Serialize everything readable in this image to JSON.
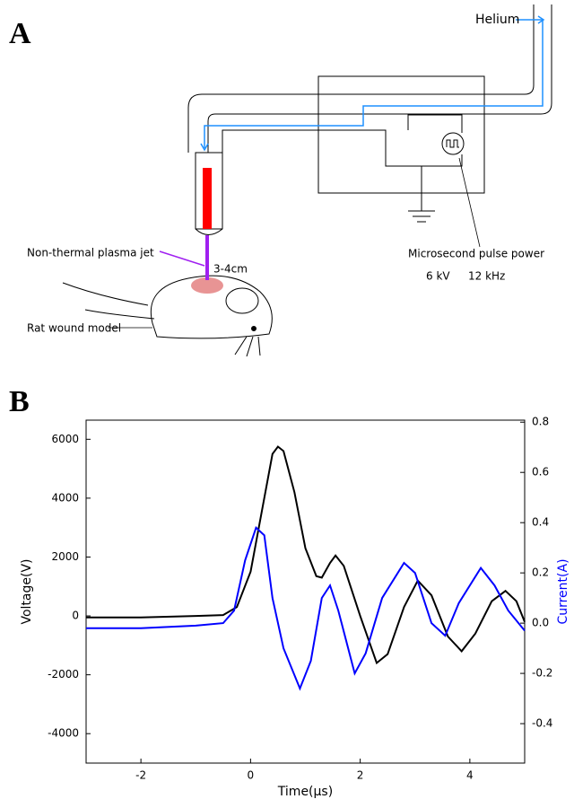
{
  "panel_a": {
    "label": "A",
    "helium": "Helium",
    "plasma_jet": "Non-thermal plasma jet",
    "distance": "3-4cm",
    "power": "Microsecond pulse power",
    "voltage": "6 kV",
    "frequency": "12 kHz",
    "rat": "Rat wound model"
  },
  "panel_b": {
    "label": "B"
  },
  "chart_data": {
    "type": "line",
    "x_label": "Time(μs)",
    "y_label": "Voltage(V)",
    "y2_label": "Current(A)",
    "xlim": [
      -3,
      5
    ],
    "xticks": [
      -2,
      0,
      2,
      4
    ],
    "ylim": [
      -5000,
      6650
    ],
    "yticks": [
      -4000,
      -2000,
      0,
      2000,
      4000,
      6000
    ],
    "y2lim": [
      -0.557,
      0.808
    ],
    "y2ticks": [
      -0.4,
      -0.2,
      {
        "value": 0,
        "label": "0.0"
      },
      0.2,
      0.4,
      0.6,
      0.8
    ],
    "series": [
      {
        "color": "#000000",
        "x": [
          -3,
          -2,
          -1,
          -0.5,
          -0.25,
          0,
          0.2,
          0.4,
          0.5,
          0.6,
          0.8,
          1.0,
          1.2,
          1.3,
          1.45,
          1.55,
          1.7,
          2.0,
          2.3,
          2.5,
          2.8,
          3.05,
          3.3,
          3.6,
          3.85,
          4.1,
          4.4,
          4.65,
          4.85,
          5.0
        ],
        "values": [
          -50,
          -50,
          0,
          30,
          300,
          1500,
          3500,
          5500,
          5750,
          5600,
          4200,
          2300,
          1350,
          1300,
          1800,
          2050,
          1700,
          0,
          -1600,
          -1300,
          300,
          1200,
          700,
          -700,
          -1200,
          -600,
          500,
          850,
          500,
          -200
        ]
      },
      {
        "color": "#0000ff",
        "axis": "y2",
        "x": [
          -3,
          -2,
          -1,
          -0.5,
          -0.3,
          -0.1,
          0.1,
          0.25,
          0.4,
          0.6,
          0.9,
          1.1,
          1.3,
          1.45,
          1.6,
          1.9,
          2.1,
          2.4,
          2.8,
          3.0,
          3.3,
          3.55,
          3.8,
          4.2,
          4.45,
          4.7,
          5.0
        ],
        "values": [
          -0.02,
          -0.02,
          -0.01,
          0.0,
          0.05,
          0.25,
          0.38,
          0.35,
          0.1,
          -0.1,
          -0.26,
          -0.15,
          0.1,
          0.15,
          0.05,
          -0.2,
          -0.12,
          0.1,
          0.24,
          0.2,
          0.0,
          -0.05,
          0.08,
          0.22,
          0.15,
          0.05,
          -0.03
        ]
      }
    ]
  }
}
